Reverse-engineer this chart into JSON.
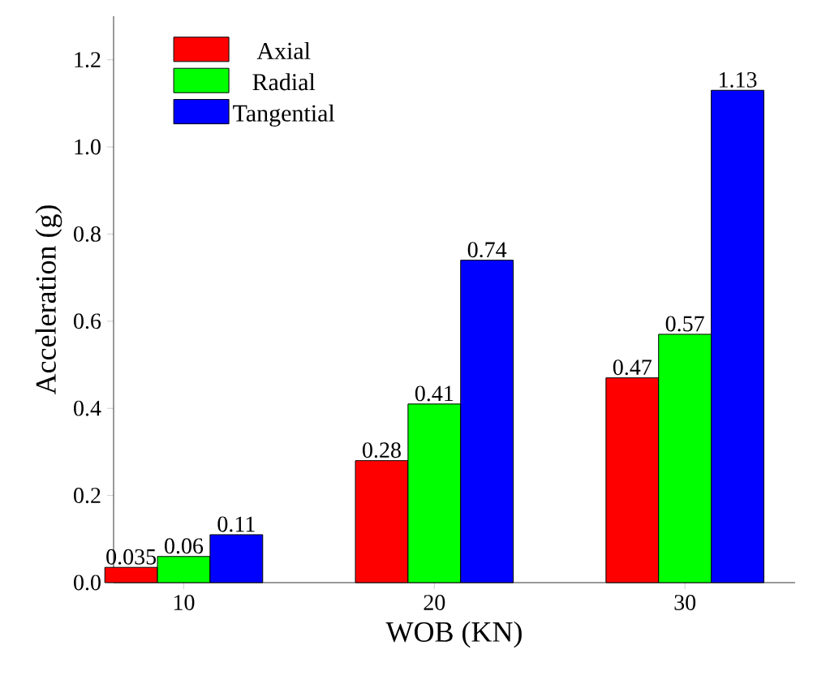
{
  "chart_data": {
    "type": "bar",
    "xlabel": "WOB (KN)",
    "ylabel": "Acceleration (g)",
    "categories": [
      "10",
      "20",
      "30"
    ],
    "series": [
      {
        "name": "Axial",
        "color": "#ff0000",
        "values": [
          0.035,
          0.28,
          0.47
        ]
      },
      {
        "name": "Radial",
        "color": "#00ff00",
        "values": [
          0.06,
          0.41,
          0.57
        ]
      },
      {
        "name": "Tangential",
        "color": "#0000ff",
        "values": [
          0.11,
          0.74,
          1.13
        ]
      }
    ],
    "ylim": [
      0,
      1.3
    ],
    "yticks": [
      {
        "value": 0,
        "label": "0.0"
      },
      0.2,
      0.4,
      0.6,
      0.8,
      {
        "value": 1,
        "label": "1.0"
      },
      1.2
    ],
    "data_labels": true,
    "legend": "top left",
    "grid": false
  }
}
